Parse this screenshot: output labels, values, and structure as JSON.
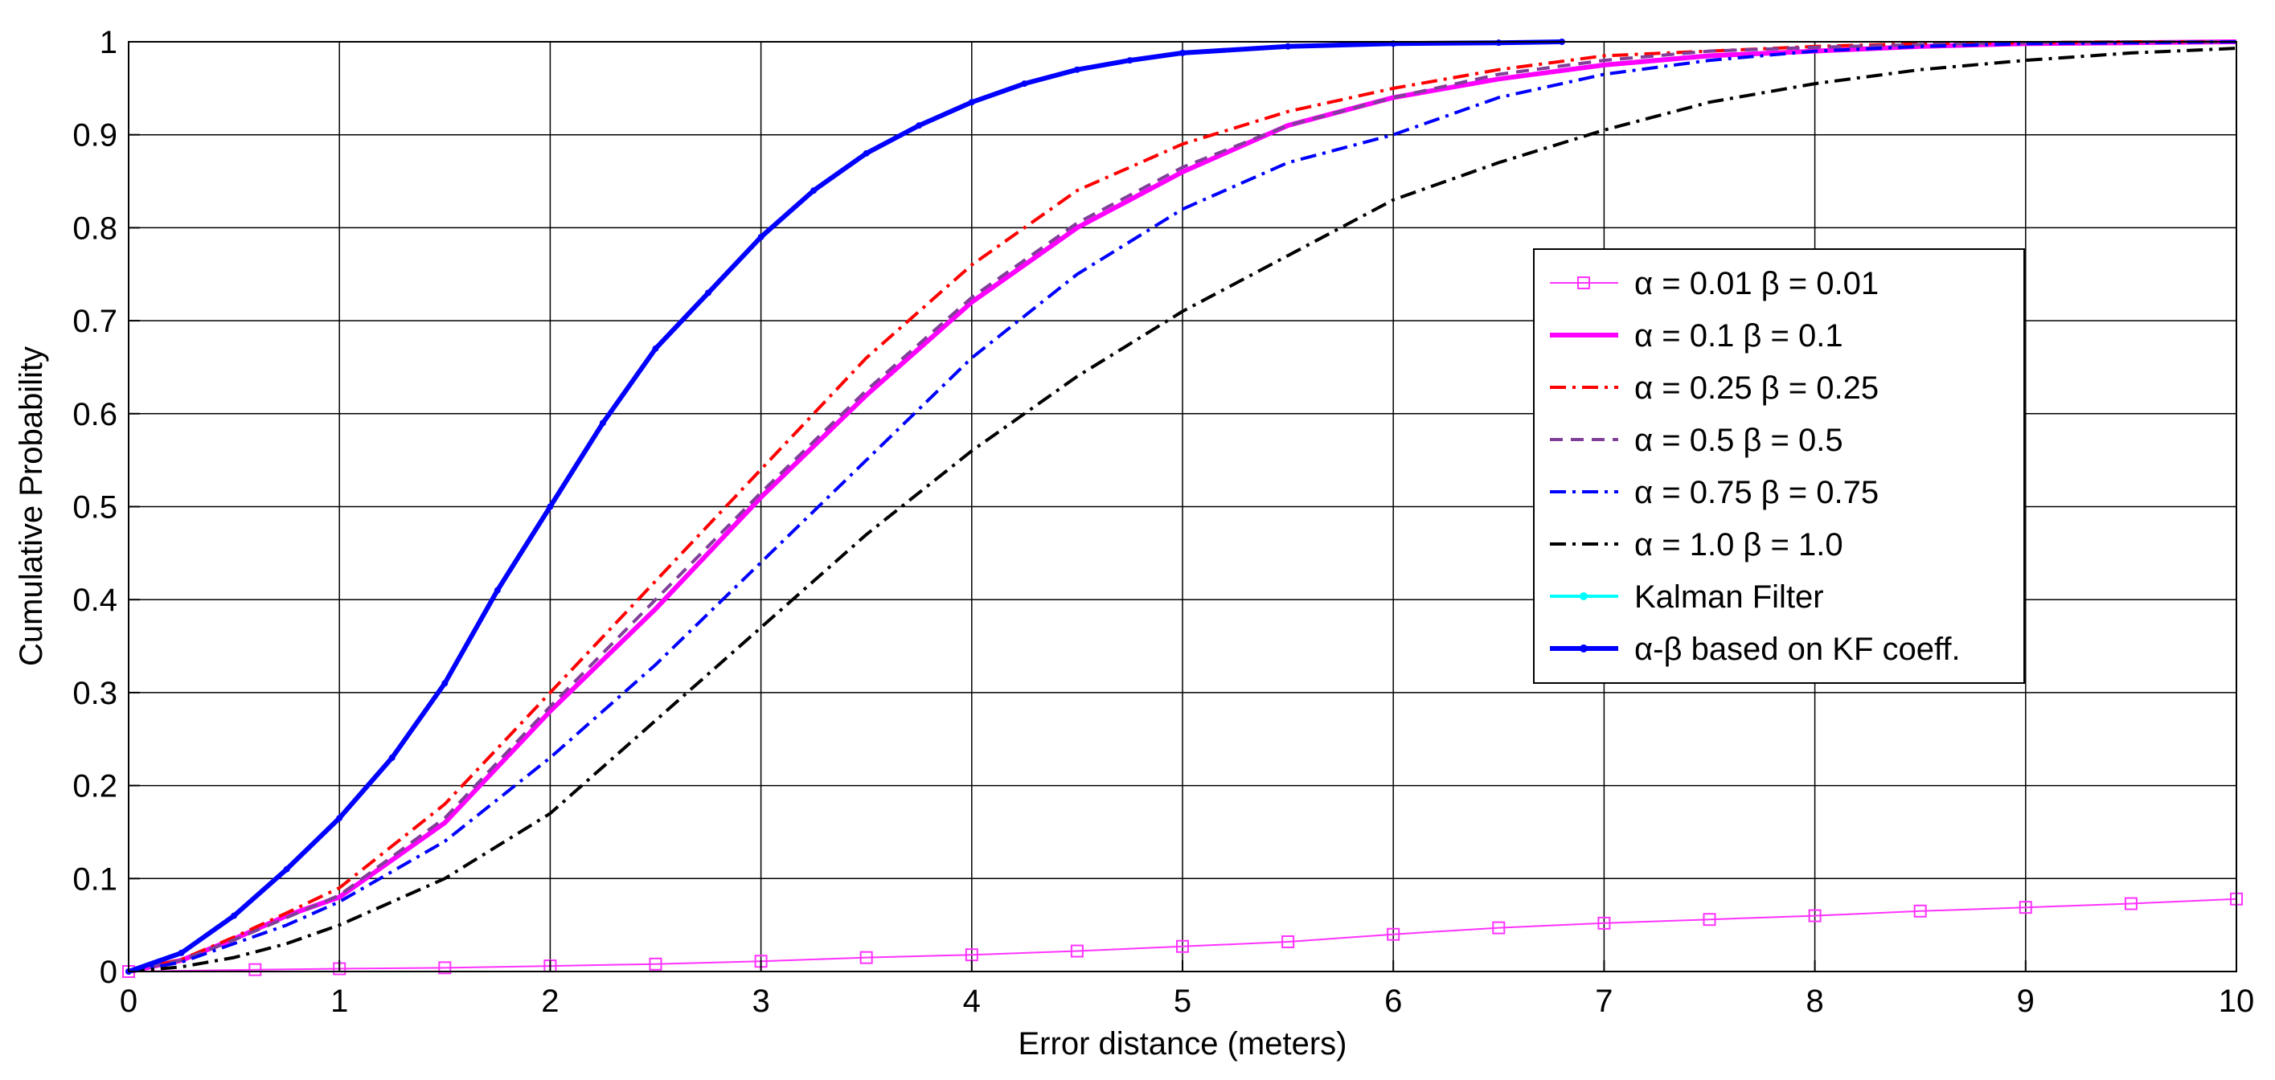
{
  "chart_data": {
    "type": "line",
    "xlabel": "Error distance (meters)",
    "ylabel": "Cumulative Probability",
    "xlim": [
      0,
      10
    ],
    "ylim": [
      0,
      1
    ],
    "xticks": [
      "0",
      "1",
      "2",
      "3",
      "4",
      "5",
      "6",
      "7",
      "8",
      "9",
      "10"
    ],
    "yticks": [
      "0",
      "0.1",
      "0.2",
      "0.3",
      "0.4",
      "0.5",
      "0.6",
      "0.7",
      "0.8",
      "0.9",
      "1"
    ],
    "grid": true,
    "legend_position": "center-right",
    "series": [
      {
        "name": "α = 0.01  β = 0.01",
        "color": "#ff33ff",
        "style": "solid-square-markers",
        "x": [
          0,
          0.6,
          1.0,
          1.5,
          2.0,
          2.5,
          3.0,
          3.5,
          4.0,
          4.5,
          5.0,
          5.5,
          6.0,
          6.5,
          7.0,
          7.5,
          8.0,
          8.5,
          9.0,
          9.5,
          10.0
        ],
        "y": [
          0,
          0.002,
          0.003,
          0.004,
          0.006,
          0.008,
          0.011,
          0.015,
          0.018,
          0.022,
          0.027,
          0.032,
          0.04,
          0.047,
          0.052,
          0.056,
          0.06,
          0.065,
          0.069,
          0.073,
          0.078
        ]
      },
      {
        "name": "α = 0.1    β = 0.1",
        "color": "#ff00ff",
        "style": "solid-thick",
        "x": [
          0,
          0.25,
          0.5,
          0.75,
          1.0,
          1.5,
          2.0,
          2.5,
          3.0,
          3.5,
          4.0,
          4.5,
          5.0,
          5.5,
          6.0,
          6.5,
          7.0,
          7.5,
          8.0,
          8.5,
          9.0,
          9.5,
          10.0
        ],
        "y": [
          0,
          0.012,
          0.035,
          0.06,
          0.08,
          0.16,
          0.28,
          0.39,
          0.51,
          0.62,
          0.72,
          0.8,
          0.86,
          0.91,
          0.94,
          0.96,
          0.975,
          0.985,
          0.99,
          0.995,
          0.998,
          0.999,
          1.0
        ]
      },
      {
        "name": "α = 0.25  β = 0.25",
        "color": "#ff0000",
        "style": "dashdot",
        "x": [
          0,
          0.25,
          0.5,
          0.75,
          1.0,
          1.5,
          2.0,
          2.5,
          3.0,
          3.5,
          4.0,
          4.5,
          5.0,
          5.5,
          6.0,
          6.5,
          7.0,
          7.5,
          8.0,
          8.5,
          9.0,
          9.5,
          10.0
        ],
        "y": [
          0,
          0.013,
          0.037,
          0.063,
          0.09,
          0.18,
          0.3,
          0.42,
          0.54,
          0.66,
          0.76,
          0.84,
          0.89,
          0.925,
          0.95,
          0.97,
          0.985,
          0.99,
          0.995,
          0.998,
          0.999,
          1.0,
          1.0
        ]
      },
      {
        "name": "α = 0.5    β = 0.5",
        "color": "#7f3f98",
        "style": "dashed",
        "x": [
          0,
          0.25,
          0.5,
          0.75,
          1.0,
          1.5,
          2.0,
          2.5,
          3.0,
          3.5,
          4.0,
          4.5,
          5.0,
          5.5,
          6.0,
          6.5,
          7.0,
          7.5,
          8.0,
          8.5,
          9.0,
          9.5,
          10.0
        ],
        "y": [
          0,
          0.012,
          0.034,
          0.058,
          0.082,
          0.165,
          0.285,
          0.4,
          0.515,
          0.625,
          0.725,
          0.805,
          0.865,
          0.91,
          0.94,
          0.965,
          0.98,
          0.99,
          0.994,
          0.997,
          0.999,
          1.0,
          1.0
        ]
      },
      {
        "name": "α = 0.75  β = 0.75",
        "color": "#0000ff",
        "style": "dashdot",
        "x": [
          0,
          0.25,
          0.5,
          0.75,
          1.0,
          1.5,
          2.0,
          2.5,
          3.0,
          3.5,
          4.0,
          4.5,
          5.0,
          5.5,
          6.0,
          6.5,
          7.0,
          7.5,
          8.0,
          8.5,
          9.0,
          9.5,
          10.0
        ],
        "y": [
          0,
          0.01,
          0.03,
          0.05,
          0.075,
          0.14,
          0.23,
          0.33,
          0.44,
          0.55,
          0.66,
          0.75,
          0.82,
          0.87,
          0.9,
          0.94,
          0.965,
          0.98,
          0.99,
          0.995,
          0.998,
          0.999,
          1.0
        ]
      },
      {
        "name": "α = 1.0    β = 1.0",
        "color": "#000000",
        "style": "dashdot",
        "x": [
          0,
          0.25,
          0.5,
          0.75,
          1.0,
          1.5,
          2.0,
          2.5,
          3.0,
          3.5,
          4.0,
          4.5,
          5.0,
          5.5,
          6.0,
          6.5,
          7.0,
          7.5,
          8.0,
          8.5,
          9.0,
          9.5,
          10.0
        ],
        "y": [
          0,
          0.005,
          0.015,
          0.03,
          0.05,
          0.1,
          0.17,
          0.27,
          0.37,
          0.47,
          0.56,
          0.64,
          0.71,
          0.77,
          0.83,
          0.87,
          0.905,
          0.935,
          0.955,
          0.97,
          0.98,
          0.988,
          0.993
        ]
      },
      {
        "name": "Kalman Filter",
        "color": "#00ffff",
        "style": "solid-dot-markers",
        "x": [],
        "y": []
      },
      {
        "name": "α-β based on KF coeff.",
        "color": "#0000ff",
        "style": "solid-dot-markers-thick",
        "x": [
          0,
          0.25,
          0.5,
          0.75,
          1.0,
          1.25,
          1.5,
          1.75,
          2.0,
          2.25,
          2.5,
          2.75,
          3.0,
          3.25,
          3.5,
          3.75,
          4.0,
          4.25,
          4.5,
          4.75,
          5.0,
          5.5,
          6.0,
          6.5,
          6.8
        ],
        "y": [
          0,
          0.02,
          0.06,
          0.11,
          0.165,
          0.23,
          0.31,
          0.41,
          0.5,
          0.59,
          0.67,
          0.73,
          0.79,
          0.84,
          0.88,
          0.91,
          0.935,
          0.955,
          0.97,
          0.98,
          0.988,
          0.995,
          0.998,
          0.999,
          1.0
        ]
      }
    ]
  }
}
